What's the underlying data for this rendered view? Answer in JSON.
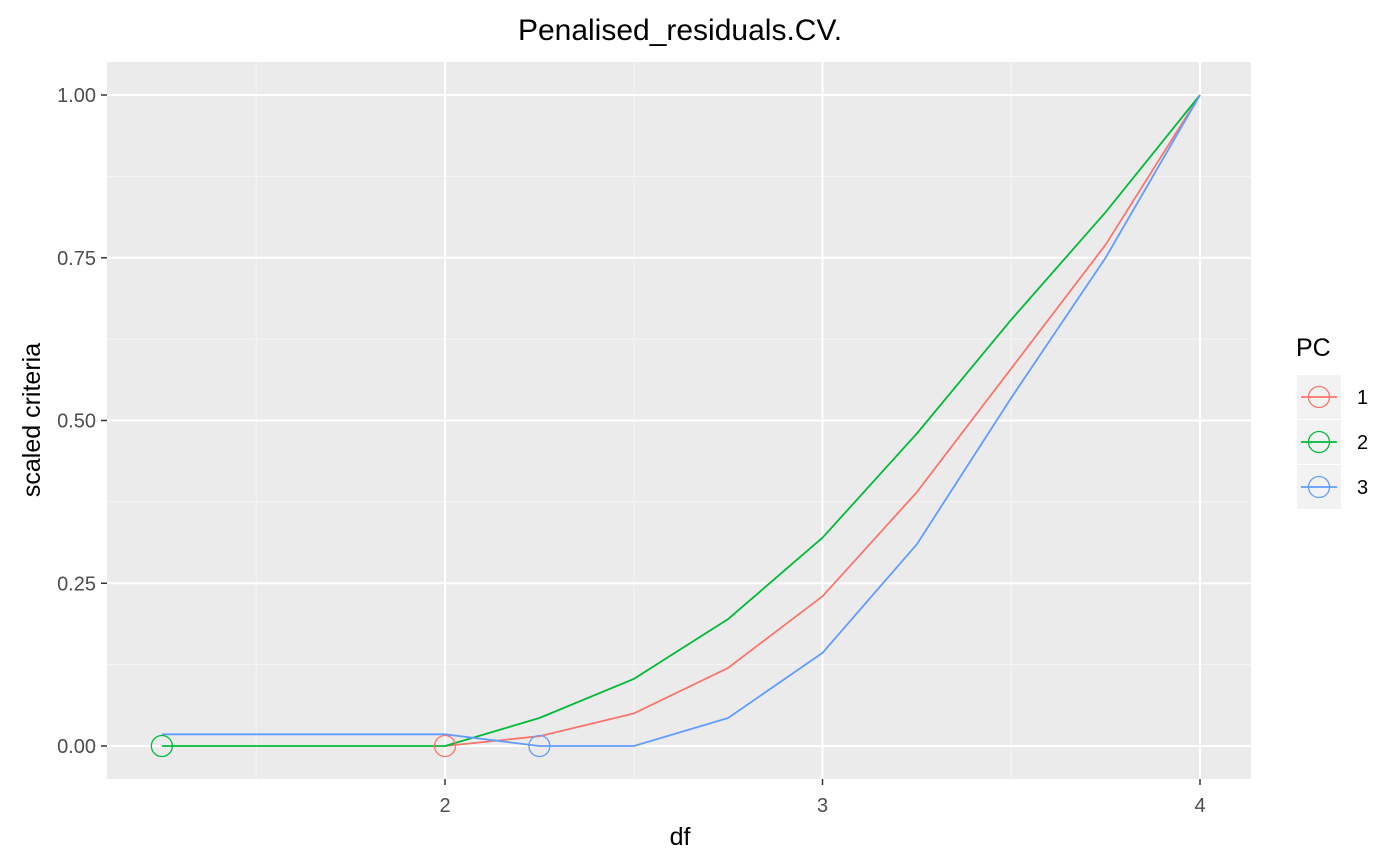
{
  "chart_data": {
    "type": "line",
    "title": "Penalised_residuals.CV.",
    "xlabel": "df",
    "ylabel": "scaled criteria",
    "xlim": [
      1.25,
      4.0
    ],
    "ylim": [
      -0.05,
      1.05
    ],
    "x_ticks": [
      2,
      3,
      4
    ],
    "x_tick_labels": [
      "2",
      "3",
      "4"
    ],
    "y_ticks": [
      0,
      0.25,
      0.5,
      0.75,
      1.0
    ],
    "y_tick_labels": [
      "0.00",
      "0.25",
      "0.50",
      "0.75",
      "1.00"
    ],
    "grid": true,
    "legend": {
      "title": "PC",
      "position": "right",
      "marker": "open-circle-with-line"
    },
    "series": [
      {
        "name": "1",
        "color": "#F8766D",
        "x": [
          2.0,
          2.25,
          2.5,
          2.75,
          3.0,
          3.25,
          3.5,
          3.75,
          4.0
        ],
        "y": [
          0.0,
          0.015,
          0.05,
          0.12,
          0.23,
          0.39,
          0.58,
          0.77,
          1.0
        ],
        "minimum": {
          "x": 2.0,
          "y": 0.0
        }
      },
      {
        "name": "2",
        "color": "#00BA38",
        "x": [
          1.25,
          1.5,
          1.75,
          2.0,
          2.25,
          2.5,
          2.75,
          3.0,
          3.25,
          3.5,
          3.75,
          4.0
        ],
        "y": [
          0.0,
          0.0,
          0.0,
          0.0,
          0.043,
          0.103,
          0.195,
          0.32,
          0.48,
          0.655,
          0.82,
          1.0
        ],
        "minimum": {
          "x": 1.25,
          "y": 0.0
        }
      },
      {
        "name": "3",
        "color": "#619CFF",
        "x": [
          1.25,
          1.5,
          1.75,
          2.0,
          2.25,
          2.5,
          2.75,
          3.0,
          3.25,
          3.5,
          3.75,
          4.0
        ],
        "y": [
          0.018,
          0.018,
          0.018,
          0.018,
          0.0,
          0.0,
          0.043,
          0.143,
          0.31,
          0.535,
          0.75,
          1.0
        ],
        "minimum": {
          "x": 2.25,
          "y": 0.0
        }
      }
    ]
  },
  "colors": {
    "panel_background": "#EBEBEB",
    "grid_major": "#FFFFFF",
    "grid_minor": "#F5F5F5"
  }
}
